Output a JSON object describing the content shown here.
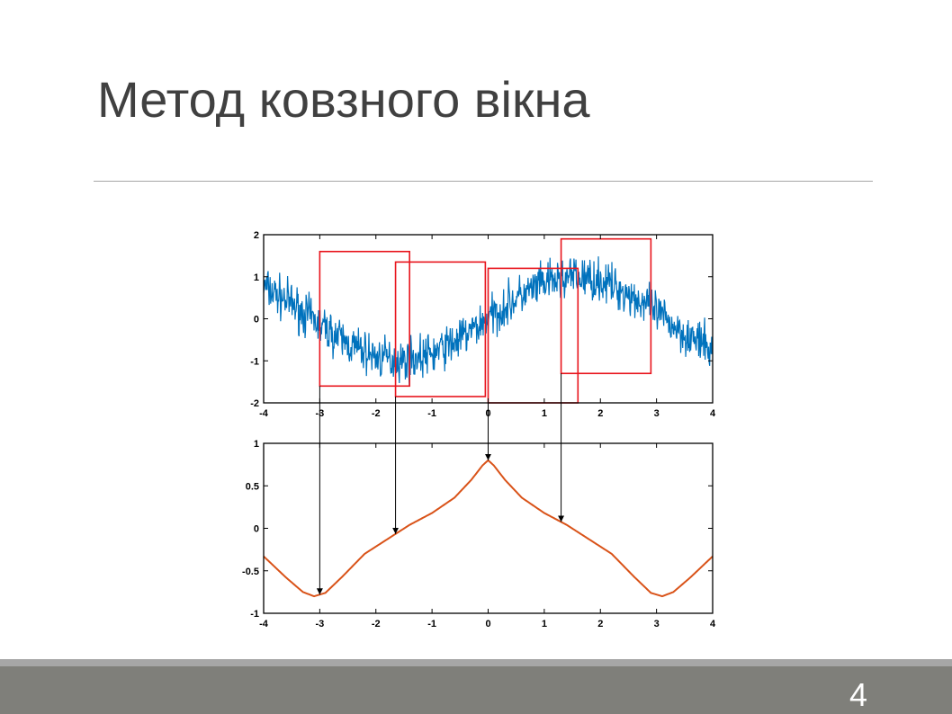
{
  "slide": {
    "title": "Метод ковзного вікна",
    "page_number": "4"
  },
  "colors": {
    "noise_signal": "#0072bd",
    "smooth_curve": "#d95319",
    "window_box": "#e8141c",
    "arrow": "#000000",
    "title_text": "#404040",
    "footer": "#7f7f7a"
  },
  "chart_data": [
    {
      "type": "line",
      "title": "",
      "xlabel": "",
      "ylabel": "",
      "xlim": [
        -4,
        4
      ],
      "ylim": [
        -2,
        2
      ],
      "xticks": [
        "-4",
        "-3",
        "-2",
        "-1",
        "0",
        "1",
        "2",
        "3",
        "4"
      ],
      "yticks": [
        "2",
        "1",
        "0",
        "-1",
        "-2"
      ],
      "series": [
        {
          "x": [
            -4,
            -3.5,
            -3,
            -2.5,
            -2,
            -1.5,
            -1,
            -0.5,
            0,
            0.5,
            1,
            1.5,
            2,
            2.5,
            3,
            3.5,
            4
          ],
          "values": [
            0.76,
            0.35,
            -0.14,
            -0.6,
            -0.91,
            -1.0,
            -0.84,
            -0.48,
            0.0,
            0.48,
            0.84,
            1.0,
            0.91,
            0.6,
            0.14,
            -0.35,
            -0.76
          ],
          "noise_amplitude": 0.35
        }
      ],
      "windows": [
        {
          "x": [
            -3.0,
            -1.4
          ],
          "y": [
            -1.6,
            1.6
          ]
        },
        {
          "x": [
            -1.65,
            -0.05
          ],
          "y": [
            -1.85,
            1.35
          ]
        },
        {
          "x": [
            0.0,
            1.6
          ],
          "y": [
            -2.0,
            1.2
          ]
        },
        {
          "x": [
            1.3,
            2.9
          ],
          "y": [
            -1.3,
            1.9
          ]
        }
      ],
      "grid": false,
      "legend": "none"
    },
    {
      "type": "line",
      "title": "",
      "xlabel": "",
      "ylabel": "",
      "xlim": [
        -4,
        4
      ],
      "ylim": [
        -1,
        1
      ],
      "xticks": [
        "-4",
        "-3",
        "-2",
        "-1",
        "0",
        "1",
        "2",
        "3",
        "4"
      ],
      "yticks": [
        "1",
        "0.5",
        "0",
        "-0.5",
        "-1"
      ],
      "series": [
        {
          "x": [
            -4,
            -3.6,
            -3.3,
            -3.1,
            -2.9,
            -2.6,
            -2.2,
            -1.8,
            -1.4,
            -1.0,
            -0.6,
            -0.3,
            -0.1,
            0,
            0.1,
            0.3,
            0.6,
            1.0,
            1.4,
            1.8,
            2.2,
            2.6,
            2.9,
            3.1,
            3.3,
            3.6,
            4
          ],
          "values": [
            -0.33,
            -0.58,
            -0.75,
            -0.8,
            -0.76,
            -0.57,
            -0.3,
            -0.13,
            0.04,
            0.18,
            0.36,
            0.57,
            0.74,
            0.8,
            0.74,
            0.57,
            0.36,
            0.18,
            0.04,
            -0.13,
            -0.3,
            -0.57,
            -0.76,
            -0.8,
            -0.75,
            -0.58,
            -0.33
          ]
        }
      ],
      "grid": false,
      "legend": "none"
    }
  ],
  "arrows": [
    {
      "from_x": -3.0,
      "to_x": -3.0
    },
    {
      "from_x": -1.65,
      "to_x": -1.65
    },
    {
      "from_x": 0.0,
      "to_x": 0.0
    },
    {
      "from_x": 1.3,
      "to_x": 1.3
    }
  ]
}
